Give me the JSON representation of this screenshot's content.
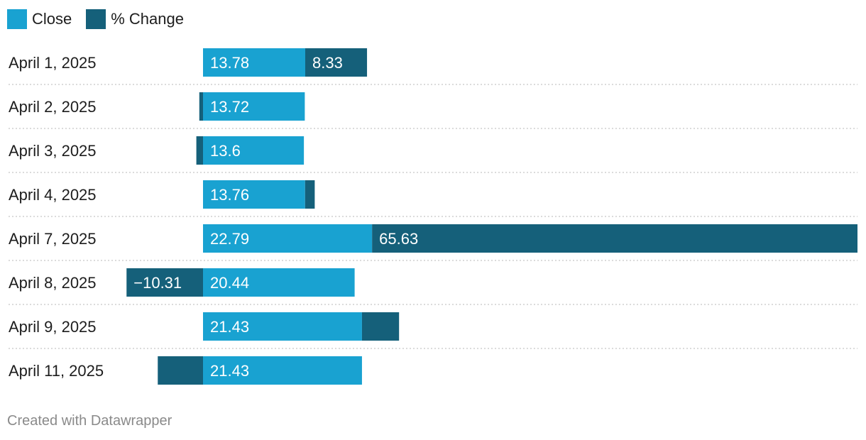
{
  "colors": {
    "close": "#19a2d1",
    "pct_change": "#15607a",
    "divider": "#cfcfcf",
    "text_light": "#ffffff",
    "text_dark": "#1d1d1d"
  },
  "chart_data": {
    "type": "bar",
    "orientation": "horizontal-stacked",
    "categories": [
      "April 1, 2025",
      "April 2, 2025",
      "April 3, 2025",
      "April 4, 2025",
      "April 7, 2025",
      "April 8, 2025",
      "April 9, 2025",
      "April 11, 2025"
    ],
    "series": [
      {
        "name": "Close",
        "values": [
          13.78,
          13.72,
          13.6,
          13.76,
          22.79,
          20.44,
          21.43,
          21.43
        ],
        "labels": [
          "13.78",
          "13.72",
          "13.6",
          "13.76",
          "22.79",
          "20.44",
          "21.43",
          "21.43"
        ]
      },
      {
        "name": "% Change",
        "values": [
          8.33,
          -0.5,
          -0.9,
          1.3,
          65.63,
          -10.31,
          5.0,
          -6.1
        ],
        "labels": [
          "8.33",
          "",
          "",
          "",
          "65.63",
          "−10.31",
          "",
          ""
        ]
      }
    ],
    "title": "",
    "xlabel": "",
    "ylabel": "",
    "legend": "top-left",
    "grid": false
  },
  "footer": {
    "credit": "Created with Datawrapper"
  }
}
